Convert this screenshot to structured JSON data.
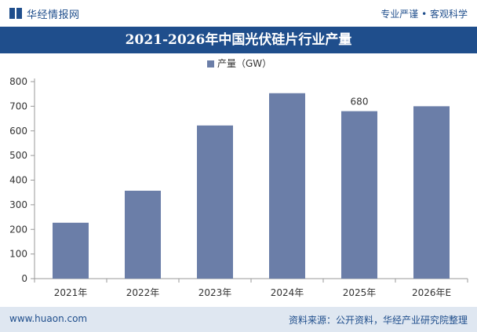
{
  "header": {
    "brand_name": "华经情报网",
    "tagline": "专业严谨 • 客观科学",
    "logo_icon": "huajing-logo-icon"
  },
  "footer": {
    "website": "www.huaon.com",
    "source": "资料来源：公开资料，华经产业研究院整理"
  },
  "colors": {
    "brand": "#1f4e8c",
    "bar": "#6b7ea8",
    "footer_bg": "#dfe7f1"
  },
  "chart_data": {
    "type": "bar",
    "title": "2021-2026年中国光伏硅片行业产量",
    "categories": [
      "2021年",
      "2022年",
      "2023年",
      "2024年",
      "2025年",
      "2026年E"
    ],
    "series": [
      {
        "name": "产量（GW）",
        "values": [
          227,
          357,
          622,
          753,
          680,
          700
        ]
      }
    ],
    "data_labels": [
      {
        "category": "2025年",
        "text": "680"
      }
    ],
    "ylim": [
      0,
      800
    ],
    "yticks": [
      0,
      100,
      200,
      300,
      400,
      500,
      600,
      700,
      800
    ],
    "xlabel": "",
    "ylabel": "",
    "legend_position": "top-center",
    "grid": false
  }
}
